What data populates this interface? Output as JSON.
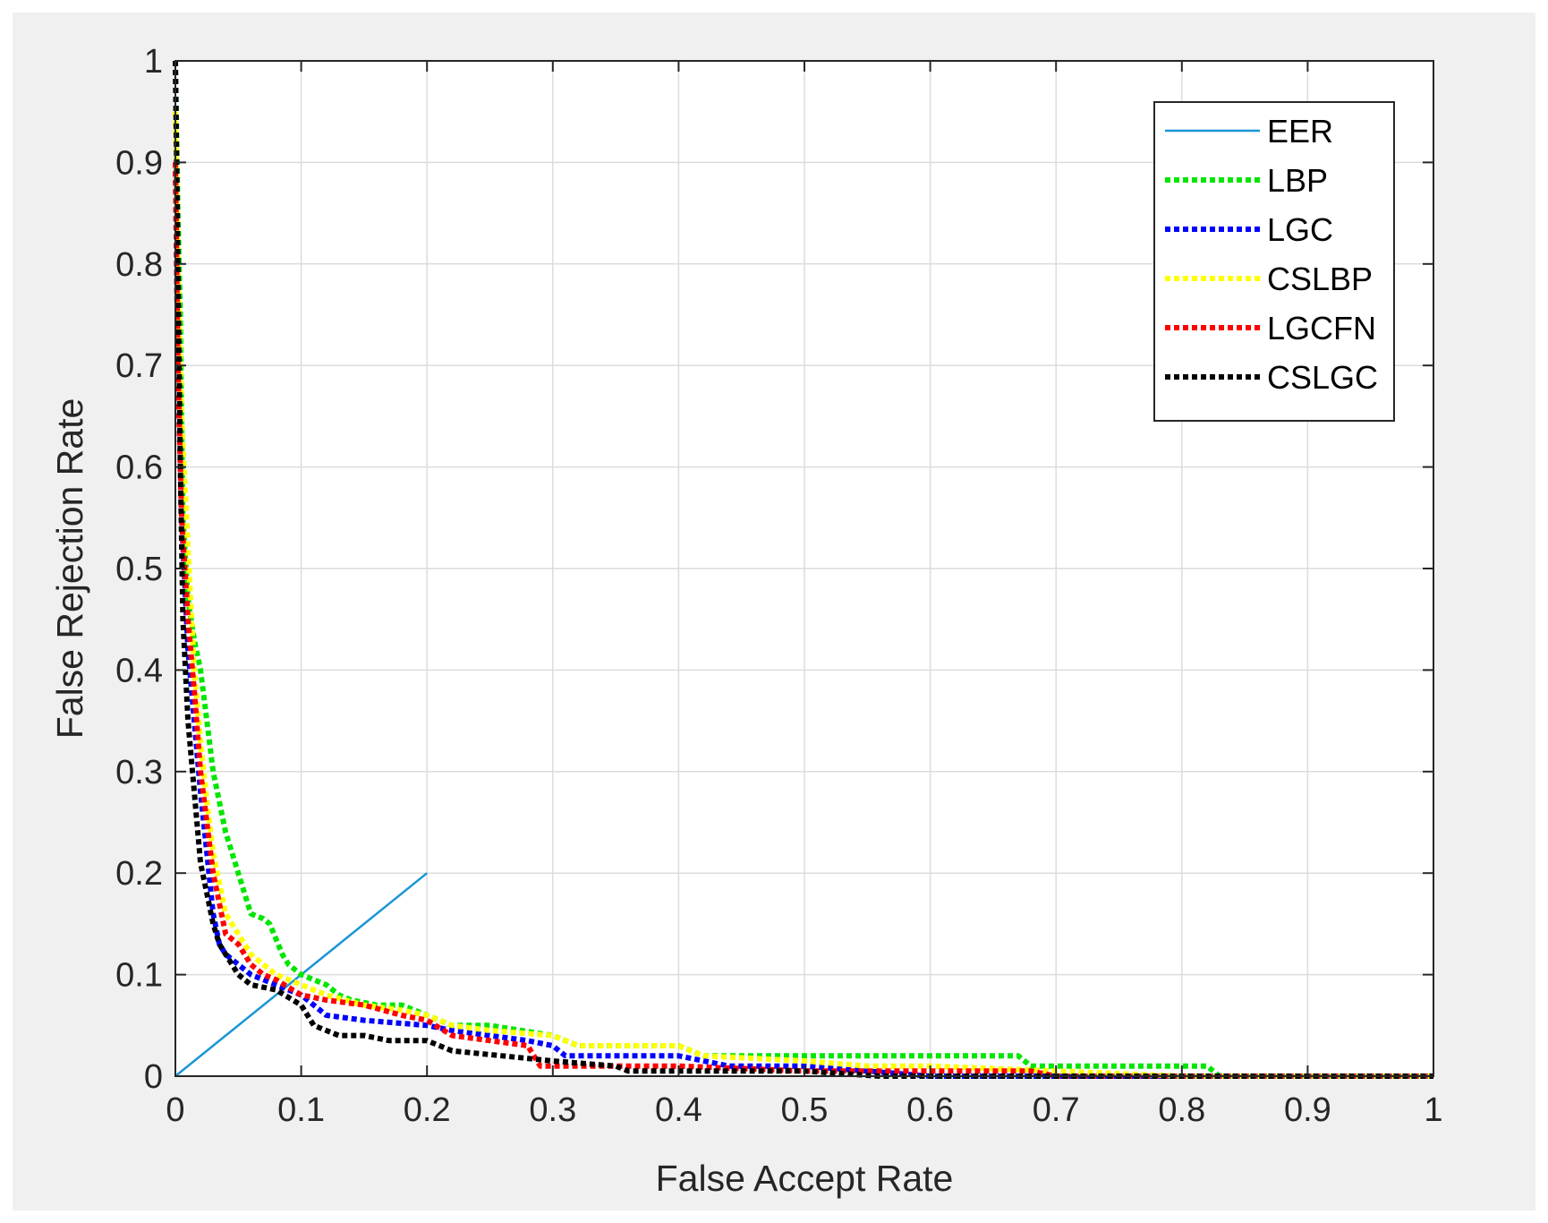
{
  "chart_data": {
    "type": "line",
    "title": "",
    "xlabel": "False Accept Rate",
    "ylabel": "False Rejection Rate",
    "xlim": [
      0,
      1
    ],
    "ylim": [
      0,
      1
    ],
    "xticks": [
      "0",
      "0.1",
      "0.2",
      "0.3",
      "0.4",
      "0.5",
      "0.6",
      "0.7",
      "0.8",
      "0.9",
      "1"
    ],
    "yticks": [
      "0",
      "0.1",
      "0.2",
      "0.3",
      "0.4",
      "0.5",
      "0.6",
      "0.7",
      "0.8",
      "0.9",
      "1"
    ],
    "grid": true,
    "legend_position": "top-right",
    "series": [
      {
        "name": "EER",
        "color": "#1a96d6",
        "style": "solid",
        "points": [
          [
            0,
            0
          ],
          [
            0.2,
            0.2
          ]
        ]
      },
      {
        "name": "LBP",
        "color": "#00e600",
        "style": "dotted",
        "points": [
          [
            0,
            1.0
          ],
          [
            0.002,
            0.85
          ],
          [
            0.004,
            0.75
          ],
          [
            0.006,
            0.55
          ],
          [
            0.01,
            0.47
          ],
          [
            0.015,
            0.43
          ],
          [
            0.02,
            0.4
          ],
          [
            0.025,
            0.35
          ],
          [
            0.03,
            0.3
          ],
          [
            0.035,
            0.27
          ],
          [
            0.04,
            0.24
          ],
          [
            0.045,
            0.22
          ],
          [
            0.05,
            0.2
          ],
          [
            0.055,
            0.18
          ],
          [
            0.06,
            0.16
          ],
          [
            0.07,
            0.155
          ],
          [
            0.075,
            0.15
          ],
          [
            0.08,
            0.135
          ],
          [
            0.085,
            0.12
          ],
          [
            0.09,
            0.11
          ],
          [
            0.1,
            0.1
          ],
          [
            0.12,
            0.09
          ],
          [
            0.13,
            0.08
          ],
          [
            0.14,
            0.075
          ],
          [
            0.16,
            0.07
          ],
          [
            0.18,
            0.07
          ],
          [
            0.2,
            0.06
          ],
          [
            0.22,
            0.05
          ],
          [
            0.25,
            0.05
          ],
          [
            0.3,
            0.04
          ],
          [
            0.32,
            0.03
          ],
          [
            0.4,
            0.03
          ],
          [
            0.42,
            0.02
          ],
          [
            0.5,
            0.02
          ],
          [
            0.6,
            0.02
          ],
          [
            0.67,
            0.02
          ],
          [
            0.68,
            0.01
          ],
          [
            0.82,
            0.01
          ],
          [
            0.83,
            0.0
          ],
          [
            1.0,
            0.0
          ]
        ]
      },
      {
        "name": "LGC",
        "color": "#0000ff",
        "style": "dotted",
        "points": [
          [
            0,
            0.9
          ],
          [
            0.002,
            0.7
          ],
          [
            0.005,
            0.55
          ],
          [
            0.01,
            0.42
          ],
          [
            0.015,
            0.35
          ],
          [
            0.02,
            0.28
          ],
          [
            0.025,
            0.22
          ],
          [
            0.03,
            0.16
          ],
          [
            0.035,
            0.13
          ],
          [
            0.04,
            0.12
          ],
          [
            0.05,
            0.11
          ],
          [
            0.06,
            0.1
          ],
          [
            0.08,
            0.09
          ],
          [
            0.1,
            0.08
          ],
          [
            0.12,
            0.06
          ],
          [
            0.15,
            0.055
          ],
          [
            0.2,
            0.05
          ],
          [
            0.22,
            0.045
          ],
          [
            0.25,
            0.04
          ],
          [
            0.28,
            0.035
          ],
          [
            0.3,
            0.03
          ],
          [
            0.31,
            0.02
          ],
          [
            0.4,
            0.02
          ],
          [
            0.42,
            0.015
          ],
          [
            0.44,
            0.01
          ],
          [
            0.5,
            0.01
          ],
          [
            0.55,
            0.005
          ],
          [
            0.6,
            0.0
          ],
          [
            1.0,
            0.0
          ]
        ]
      },
      {
        "name": "CSLBP",
        "color": "#ffff00",
        "style": "dotted",
        "points": [
          [
            0,
            0.95
          ],
          [
            0.002,
            0.8
          ],
          [
            0.005,
            0.65
          ],
          [
            0.01,
            0.52
          ],
          [
            0.015,
            0.4
          ],
          [
            0.02,
            0.33
          ],
          [
            0.025,
            0.27
          ],
          [
            0.03,
            0.22
          ],
          [
            0.035,
            0.19
          ],
          [
            0.04,
            0.16
          ],
          [
            0.05,
            0.14
          ],
          [
            0.06,
            0.12
          ],
          [
            0.07,
            0.11
          ],
          [
            0.08,
            0.1
          ],
          [
            0.1,
            0.09
          ],
          [
            0.12,
            0.08
          ],
          [
            0.15,
            0.07
          ],
          [
            0.18,
            0.065
          ],
          [
            0.2,
            0.06
          ],
          [
            0.22,
            0.05
          ],
          [
            0.25,
            0.045
          ],
          [
            0.3,
            0.04
          ],
          [
            0.32,
            0.03
          ],
          [
            0.4,
            0.03
          ],
          [
            0.42,
            0.02
          ],
          [
            0.5,
            0.015
          ],
          [
            0.55,
            0.01
          ],
          [
            0.6,
            0.01
          ],
          [
            0.7,
            0.005
          ],
          [
            0.8,
            0.0
          ],
          [
            1.0,
            0.0
          ]
        ]
      },
      {
        "name": "LGCFN",
        "color": "#ff0000",
        "style": "dotted",
        "points": [
          [
            0,
            0.9
          ],
          [
            0.002,
            0.7
          ],
          [
            0.005,
            0.55
          ],
          [
            0.01,
            0.45
          ],
          [
            0.015,
            0.38
          ],
          [
            0.02,
            0.3
          ],
          [
            0.025,
            0.25
          ],
          [
            0.03,
            0.2
          ],
          [
            0.035,
            0.17
          ],
          [
            0.04,
            0.14
          ],
          [
            0.05,
            0.13
          ],
          [
            0.06,
            0.11
          ],
          [
            0.07,
            0.1
          ],
          [
            0.08,
            0.095
          ],
          [
            0.1,
            0.08
          ],
          [
            0.12,
            0.075
          ],
          [
            0.15,
            0.07
          ],
          [
            0.18,
            0.06
          ],
          [
            0.2,
            0.055
          ],
          [
            0.22,
            0.04
          ],
          [
            0.25,
            0.035
          ],
          [
            0.28,
            0.03
          ],
          [
            0.29,
            0.01
          ],
          [
            0.35,
            0.01
          ],
          [
            0.4,
            0.01
          ],
          [
            0.5,
            0.005
          ],
          [
            0.56,
            0.005
          ],
          [
            0.6,
            0.005
          ],
          [
            0.68,
            0.005
          ],
          [
            0.7,
            0.0
          ],
          [
            1.0,
            0.0
          ]
        ]
      },
      {
        "name": "CSLGC",
        "color": "#000000",
        "style": "dotted",
        "points": [
          [
            0,
            1.0
          ],
          [
            0.002,
            0.8
          ],
          [
            0.004,
            0.6
          ],
          [
            0.006,
            0.45
          ],
          [
            0.01,
            0.35
          ],
          [
            0.015,
            0.28
          ],
          [
            0.02,
            0.21
          ],
          [
            0.025,
            0.18
          ],
          [
            0.03,
            0.15
          ],
          [
            0.035,
            0.13
          ],
          [
            0.04,
            0.12
          ],
          [
            0.05,
            0.1
          ],
          [
            0.06,
            0.09
          ],
          [
            0.08,
            0.085
          ],
          [
            0.1,
            0.07
          ],
          [
            0.11,
            0.05
          ],
          [
            0.12,
            0.045
          ],
          [
            0.13,
            0.04
          ],
          [
            0.15,
            0.04
          ],
          [
            0.17,
            0.035
          ],
          [
            0.2,
            0.035
          ],
          [
            0.22,
            0.025
          ],
          [
            0.26,
            0.02
          ],
          [
            0.3,
            0.015
          ],
          [
            0.35,
            0.01
          ],
          [
            0.36,
            0.005
          ],
          [
            0.4,
            0.005
          ],
          [
            0.5,
            0.005
          ],
          [
            0.56,
            0.0
          ],
          [
            1.0,
            0.0
          ]
        ]
      }
    ]
  }
}
